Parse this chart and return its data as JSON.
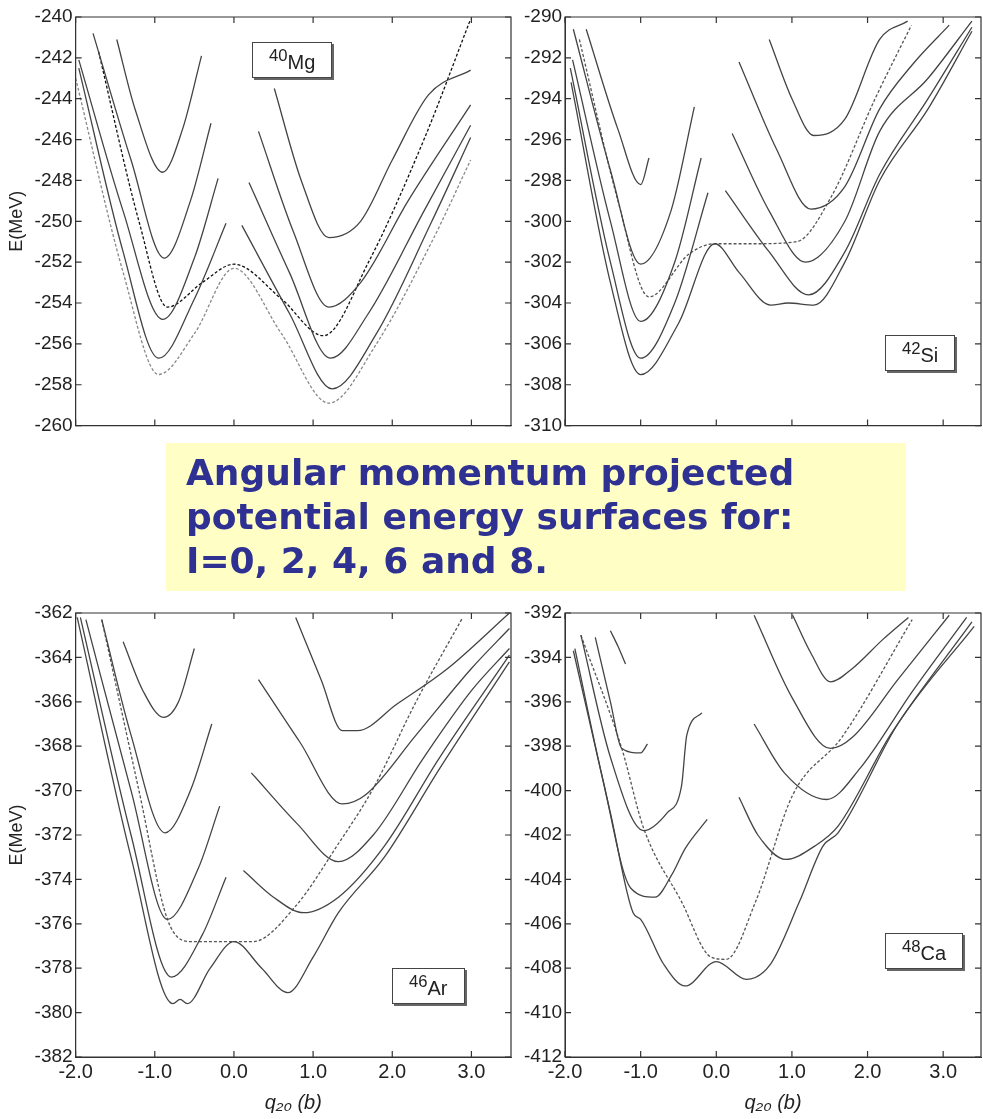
{
  "chart_data": [
    {
      "type": "line",
      "ylabel": "E(MeV)",
      "annotations": [
        "$^{40}$Mg",
        "Angular momentum projected potential energy surfaces for: I=0, 2, 4, 6 and 8."
      ],
      "xlim": [
        -2,
        3.5
      ],
      "xticks": [
        {
          "value": -2,
          "label": null
        },
        {
          "value": -1,
          "label": null
        },
        {
          "value": 0,
          "label": null
        },
        {
          "value": 1,
          "label": null
        },
        {
          "value": 2,
          "label": null
        },
        {
          "value": 3,
          "label": null
        }
      ],
      "ylim": [
        -260,
        -240
      ],
      "yticks": [
        -260,
        -258,
        -256,
        -254,
        -252,
        -250,
        -248,
        -246,
        -244,
        -242,
        -240
      ],
      "tick_labels": "y",
      "marker": "none",
      "line_style": "solid",
      "series": [
        {
          "color": "#444444",
          "x": [
            -1.48,
            -1.25,
            -0.9,
            -0.65,
            -0.41
          ],
          "values": [
            -241.1,
            -244.5,
            -247.6,
            -245.5,
            -241.9
          ]
        },
        {
          "color": "#444444",
          "x": [
            0.51,
            0.85,
            1.2,
            1.6,
            2.0,
            2.46,
            2.99
          ],
          "values": [
            -243.5,
            -248.0,
            -250.8,
            -250.0,
            -247.0,
            -243.8,
            -242.6
          ]
        },
        {
          "color": "#444444",
          "x": [
            -1.78,
            -1.3,
            -0.88,
            -0.55,
            -0.29
          ],
          "values": [
            -240.8,
            -247.0,
            -251.8,
            -249.0,
            -245.2
          ]
        },
        {
          "color": "#444444",
          "x": [
            0.31,
            0.75,
            1.2,
            1.6,
            2.2,
            2.99
          ],
          "values": [
            -245.6,
            -250.5,
            -254.2,
            -253.0,
            -249.0,
            -244.3
          ]
        },
        {
          "color": "#444444",
          "x": [
            -1.96,
            -1.4,
            -0.9,
            -0.5,
            -0.2
          ],
          "values": [
            -242.1,
            -249.5,
            -254.8,
            -251.8,
            -247.9
          ]
        },
        {
          "color": "#444444",
          "x": [
            0.19,
            0.7,
            1.22,
            1.7,
            2.4,
            2.99
          ],
          "values": [
            -248.1,
            -252.5,
            -256.7,
            -254.5,
            -249.5,
            -245.3
          ]
        },
        {
          "color": "#444444",
          "x": [
            -1.96,
            -1.4,
            -0.95,
            -0.5,
            -0.1
          ],
          "values": [
            -242.5,
            -251.5,
            -256.7,
            -253.8,
            -250.1
          ]
        },
        {
          "color": "#444444",
          "x": [
            0.1,
            0.7,
            1.24,
            1.8,
            2.5,
            2.99
          ],
          "values": [
            -250.2,
            -254.5,
            -258.2,
            -255.5,
            -250.0,
            -245.9
          ]
        },
        {
          "color": "#888888",
          "line_style": "dashed",
          "x": [
            -2,
            -1.4,
            -0.95,
            -0.5,
            0,
            0.6,
            1.2,
            1.8,
            2.5,
            2.99
          ],
          "values": [
            -243.0,
            -252.5,
            -257.5,
            -255.5,
            -252.3,
            -255.5,
            -258.9,
            -256.0,
            -251.0,
            -247.0
          ]
        },
        {
          "color": "#111111",
          "line_style": "dashed",
          "x": [
            -1.71,
            -1.2,
            -0.84,
            -0.4,
            0,
            0.6,
            1.13,
            1.7,
            2.4,
            2.99
          ],
          "values": [
            -241.7,
            -250.0,
            -254.2,
            -253.0,
            -252.1,
            -253.8,
            -255.6,
            -252.0,
            -246.0,
            -240.1
          ]
        }
      ]
    },
    {
      "type": "line",
      "annotations": [
        "$^{42}$Si"
      ],
      "xlim": [
        -2,
        3.5
      ],
      "xticks": [
        {
          "value": -2,
          "label": null
        },
        {
          "value": -1,
          "label": null
        },
        {
          "value": 0,
          "label": null
        },
        {
          "value": 1,
          "label": null
        },
        {
          "value": 2,
          "label": null
        },
        {
          "value": 3,
          "label": null
        }
      ],
      "ylim": [
        -310,
        -290
      ],
      "yticks": [
        -310,
        -308,
        -306,
        -304,
        -302,
        -300,
        -298,
        -296,
        -294,
        -292,
        -290
      ],
      "tick_labels": "y",
      "marker": "none",
      "line_style": "solid",
      "series": [
        {
          "color": "#444444",
          "x": [
            -1.72,
            -1.3,
            -1.0,
            -0.89
          ],
          "values": [
            -290.6,
            -295.5,
            -298.2,
            -296.9
          ]
        },
        {
          "color": "#444444",
          "x": [
            0.7,
            1.0,
            1.29,
            1.7,
            2.16,
            2.53
          ],
          "values": [
            -291.1,
            -294.0,
            -295.8,
            -295.0,
            -291.1,
            -290.2
          ]
        },
        {
          "color": "#444444",
          "x": [
            -1.89,
            -1.4,
            -1.0,
            -0.6,
            -0.29
          ],
          "values": [
            -290.6,
            -297.5,
            -302.1,
            -299.5,
            -294.4
          ]
        },
        {
          "color": "#444444",
          "x": [
            0.3,
            0.8,
            1.25,
            1.7,
            2.16,
            2.6,
            3.08
          ],
          "values": [
            -292.2,
            -296.5,
            -299.4,
            -298.3,
            -294.5,
            -292.3,
            -290.4
          ]
        },
        {
          "color": "#444444",
          "x": [
            -1.9,
            -1.4,
            -1.0,
            -0.55,
            -0.2
          ],
          "values": [
            -292.1,
            -300.0,
            -304.9,
            -302.0,
            -296.9
          ]
        },
        {
          "color": "#444444",
          "x": [
            0.21,
            0.7,
            1.18,
            1.7,
            2.16,
            2.8,
            3.38
          ],
          "values": [
            -295.7,
            -299.5,
            -302.0,
            -300.0,
            -295.6,
            -293.0,
            -290.2
          ]
        },
        {
          "color": "#444444",
          "x": [
            -1.93,
            -1.4,
            -1.0,
            -0.55,
            -0.11
          ],
          "values": [
            -292.5,
            -302.0,
            -306.7,
            -304.0,
            -298.6
          ]
        },
        {
          "color": "#444444",
          "x": [
            0.12,
            0.7,
            1.22,
            1.7,
            2.16,
            2.8,
            3.38
          ],
          "values": [
            -298.5,
            -301.5,
            -303.6,
            -301.5,
            -297.7,
            -294.0,
            -290.5
          ]
        },
        {
          "color": "#444444",
          "x": [
            -1.92,
            -1.4,
            -1.0,
            -0.5,
            -0.02,
            0.3,
            0.72,
            0.95,
            1.29,
            1.7,
            2.16,
            2.8,
            3.38
          ],
          "values": [
            -293.2,
            -303.0,
            -307.5,
            -305.0,
            -301.1,
            -302.5,
            -304.1,
            -304.0,
            -304.1,
            -302.0,
            -298.0,
            -294.5,
            -290.7
          ]
        },
        {
          "color": "#555555",
          "line_style": "dashed",
          "x": [
            -1.81,
            -1.3,
            -0.89,
            -0.36,
            -0.02,
            0.5,
            1.06,
            1.52,
            2.1,
            2.58
          ],
          "values": [
            -291.1,
            -299.0,
            -303.7,
            -301.6,
            -301.1,
            -301.1,
            -301.0,
            -298.8,
            -294.0,
            -290.4
          ]
        }
      ]
    },
    {
      "type": "line",
      "ylabel": "E(MeV)",
      "xlabel": "q₂₀ (b)",
      "annotations": [
        "$^{46}$Ar"
      ],
      "xlim": [
        -2,
        3.5
      ],
      "xticks": [
        {
          "value": -2,
          "label": "-2.0"
        },
        {
          "value": -1,
          "label": "-1.0"
        },
        {
          "value": 0,
          "label": "0.0"
        },
        {
          "value": 1,
          "label": "1.0"
        },
        {
          "value": 2,
          "label": "2.0"
        },
        {
          "value": 3,
          "label": "3.0"
        }
      ],
      "ylim": [
        -382,
        -362
      ],
      "yticks": [
        -382,
        -380,
        -378,
        -376,
        -374,
        -372,
        -370,
        -368,
        -366,
        -364,
        -362
      ],
      "marker": "none",
      "line_style": "solid",
      "series": [
        {
          "color": "#444444",
          "x": [
            -1.4,
            -1.15,
            -0.89,
            -0.7,
            -0.5
          ],
          "values": [
            -363.3,
            -365.5,
            -366.7,
            -366.0,
            -363.6
          ]
        },
        {
          "color": "#444444",
          "x": [
            0.78,
            1.1,
            1.37,
            1.56,
            2.06,
            2.7,
            3.48
          ],
          "values": [
            -362.2,
            -365.0,
            -367.3,
            -367.3,
            -366.1,
            -364.5,
            -362.0
          ]
        },
        {
          "color": "#444444",
          "x": [
            -1.67,
            -1.3,
            -0.87,
            -0.55,
            -0.28
          ],
          "values": [
            -362.3,
            -367.5,
            -371.9,
            -370.0,
            -367.0
          ]
        },
        {
          "color": "#444444",
          "x": [
            0.31,
            0.83,
            1.37,
            1.66,
            2.3,
            3.0,
            3.48
          ],
          "values": [
            -365.0,
            -367.8,
            -370.6,
            -370.2,
            -367.5,
            -364.5,
            -362.7
          ]
        },
        {
          "color": "#444444",
          "x": [
            -1.87,
            -1.3,
            -0.84,
            -0.45,
            -0.18
          ],
          "values": [
            -362.3,
            -370.0,
            -375.8,
            -373.5,
            -370.7
          ]
        },
        {
          "color": "#444444",
          "x": [
            0.22,
            0.8,
            1.32,
            1.76,
            2.4,
            3.0,
            3.48
          ],
          "values": [
            -369.2,
            -371.5,
            -373.2,
            -372.0,
            -368.5,
            -365.5,
            -363.6
          ]
        },
        {
          "color": "#444444",
          "x": [
            -1.94,
            -1.3,
            -0.79,
            -0.4,
            -0.1
          ],
          "values": [
            -362.2,
            -372.0,
            -378.4,
            -376.5,
            -373.9
          ]
        },
        {
          "color": "#444444",
          "x": [
            0.12,
            0.5,
            0.88,
            1.32,
            1.9,
            2.6,
            3.48
          ],
          "values": [
            -373.6,
            -374.8,
            -375.5,
            -374.8,
            -372.5,
            -368.5,
            -363.9
          ]
        },
        {
          "color": "#444444",
          "x": [
            -1.98,
            -1.3,
            -0.77,
            -0.68,
            -0.59,
            -0.3,
            0,
            0.35,
            0.68,
            1.0,
            1.32,
            1.9,
            2.6,
            3.48
          ],
          "values": [
            -362.2,
            -373.0,
            -379.6,
            -379.4,
            -379.6,
            -378.0,
            -376.8,
            -378.0,
            -379.1,
            -377.5,
            -375.5,
            -373.0,
            -369.0,
            -364.2
          ]
        },
        {
          "color": "#555555",
          "line_style": "dashed",
          "x": [
            -1.67,
            -1.2,
            -0.84,
            -0.55,
            0,
            0.24,
            0.78,
            1.3,
            1.76,
            2.3,
            2.89
          ],
          "values": [
            -362.3,
            -370.0,
            -375.8,
            -376.8,
            -376.8,
            -376.8,
            -375.2,
            -372.5,
            -369.9,
            -366.0,
            -362.2
          ]
        }
      ]
    },
    {
      "type": "line",
      "xlabel": "q₂₀ (b)",
      "annotations": [
        "$^{48}$Ca"
      ],
      "xlim": [
        -2,
        3.5
      ],
      "xticks": [
        {
          "value": -2,
          "label": "-2.0"
        },
        {
          "value": -1,
          "label": "-1.0"
        },
        {
          "value": 0,
          "label": "0.0"
        },
        {
          "value": 1,
          "label": "1.0"
        },
        {
          "value": 2,
          "label": "2.0"
        },
        {
          "value": 3,
          "label": "3.0"
        }
      ],
      "ylim": [
        -412,
        -392
      ],
      "yticks": [
        -412,
        -410,
        -408,
        -406,
        -404,
        -402,
        -400,
        -398,
        -396,
        -394,
        -392
      ],
      "marker": "none",
      "line_style": "solid",
      "series": [
        {
          "color": "#444444",
          "x": [
            -1.4,
            -1.3,
            -1.2
          ],
          "values": [
            -392.8,
            -393.5,
            -394.3
          ]
        },
        {
          "color": "#444444",
          "x": [
            1.01,
            1.25,
            1.51,
            1.8,
            2.2,
            2.54
          ],
          "values": [
            -392.1,
            -393.8,
            -395.1,
            -394.5,
            -393.2,
            -392.2
          ]
        },
        {
          "color": "#444444",
          "x": [
            -1.6,
            -1.4,
            -1.25,
            -1.0,
            -0.91
          ],
          "values": [
            -393.1,
            -396.0,
            -398.1,
            -398.3,
            -397.9
          ]
        },
        {
          "color": "#444444",
          "x": [
            0.5,
            1.0,
            1.51,
            1.8,
            2.4,
            3.08
          ],
          "values": [
            -392.1,
            -395.8,
            -398.1,
            -397.6,
            -395.0,
            -392.1
          ]
        },
        {
          "color": "#444444",
          "x": [
            -1.79,
            -1.4,
            -0.96,
            -0.65,
            -0.46,
            -0.39,
            -0.19
          ],
          "values": [
            -393.0,
            -398.5,
            -401.8,
            -401.0,
            -399.8,
            -397.5,
            -396.5
          ]
        },
        {
          "color": "#444444",
          "x": [
            0.5,
            0.9,
            1.46,
            1.9,
            2.6,
            3.31
          ],
          "values": [
            -397.0,
            -399.2,
            -400.4,
            -399.0,
            -395.5,
            -392.2
          ]
        },
        {
          "color": "#444444",
          "x": [
            -1.87,
            -1.5,
            -1.13,
            -0.81,
            -0.59,
            -0.41,
            -0.12
          ],
          "values": [
            -393.6,
            -399.5,
            -404.4,
            -404.8,
            -403.8,
            -402.6,
            -401.3
          ]
        },
        {
          "color": "#444444",
          "x": [
            0.3,
            0.55,
            0.92,
            1.3,
            1.61,
            2.3,
            3.38
          ],
          "values": [
            -400.3,
            -402.0,
            -403.1,
            -402.5,
            -401.6,
            -397.5,
            -392.4
          ]
        },
        {
          "color": "#444444",
          "x": [
            -1.89,
            -1.4,
            -1.1,
            -1.0,
            -0.7,
            -0.41,
            0,
            0.4,
            0.72,
            1.1,
            1.41,
            1.61,
            2.4,
            3.41
          ],
          "values": [
            -393.7,
            -401.0,
            -405.5,
            -405.8,
            -407.8,
            -408.8,
            -407.7,
            -408.5,
            -407.8,
            -405.0,
            -402.5,
            -401.9,
            -397.0,
            -392.6
          ]
        },
        {
          "color": "#555555",
          "line_style": "dashed",
          "x": [
            -1.79,
            -1.25,
            -0.96,
            -0.46,
            -0.07,
            0.13,
            0.52,
            1.01,
            1.66,
            2.59
          ],
          "values": [
            -393.0,
            -398.1,
            -401.7,
            -405.0,
            -407.5,
            -407.6,
            -405.0,
            -400.2,
            -397.6,
            -392.3
          ]
        }
      ]
    }
  ]
}
